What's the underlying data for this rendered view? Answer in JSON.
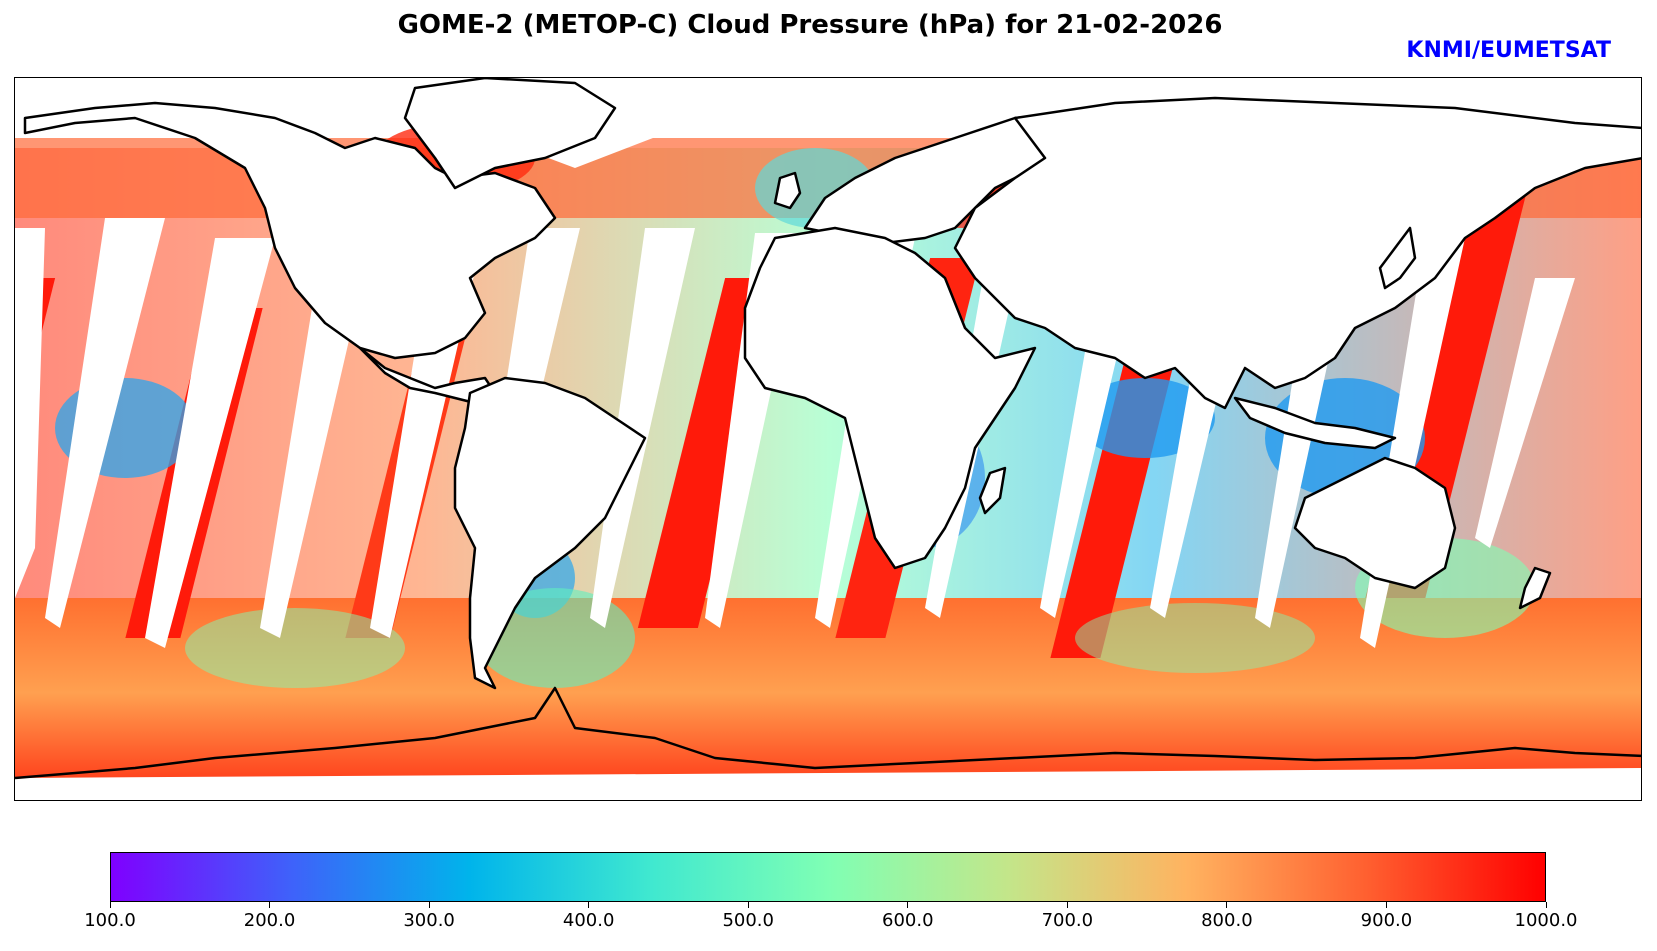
{
  "title": "GOME-2 (METOP-C) Cloud Pressure (hPa) for 21-02-2026",
  "credit": {
    "text": "KNMI/EUMETSAT",
    "color": "#0000ff"
  },
  "map": {
    "projection": "Plate Carree (global)",
    "variable": "Cloud Pressure",
    "units": "hPa",
    "date": "21-02-2026"
  },
  "colorbar": {
    "min": 100.0,
    "max": 1000.0,
    "colormap": [
      "#7f00ff",
      "#3f61fa",
      "#00b4eb",
      "#3fe8d0",
      "#7fffb4",
      "#c3e68a",
      "#ffb360",
      "#ff6030",
      "#ff0000"
    ],
    "ticks": [
      "100.0",
      "200.0",
      "300.0",
      "400.0",
      "500.0",
      "600.0",
      "700.0",
      "800.0",
      "900.0",
      "1000.0"
    ]
  }
}
